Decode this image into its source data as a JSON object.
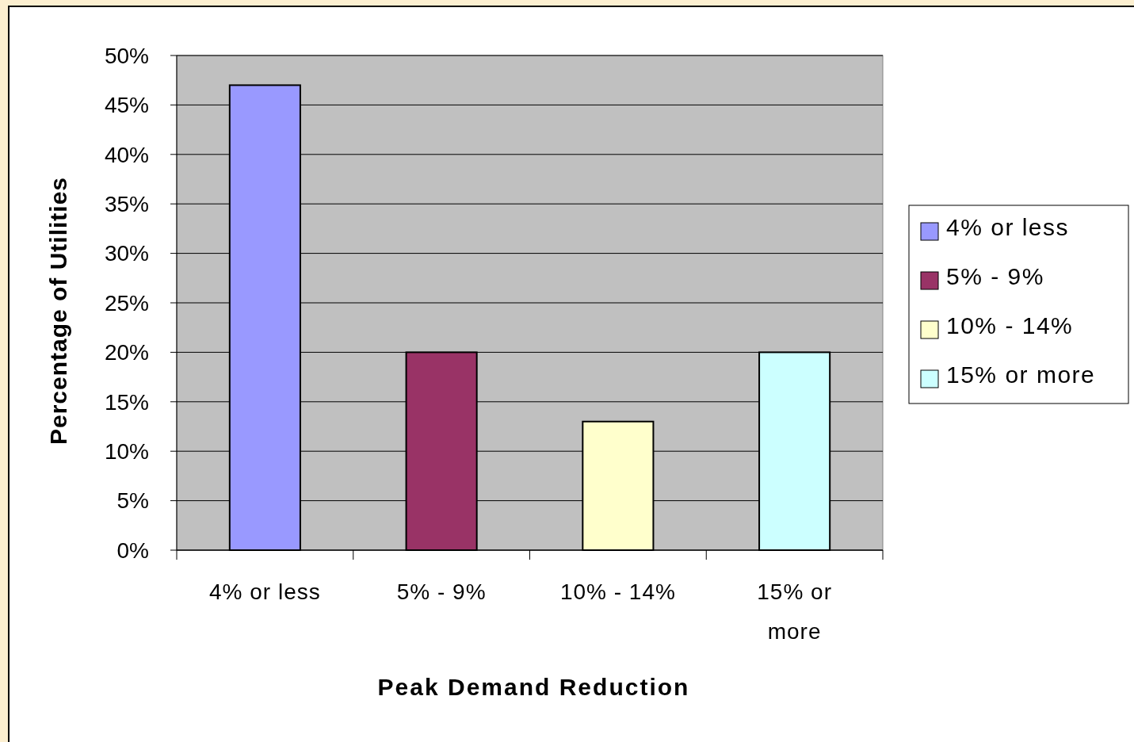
{
  "chart_data": {
    "type": "bar",
    "xlabel": "Peak Demand Reduction",
    "ylabel": "Percentage of Utilities",
    "categories": [
      "4% or less",
      "5% - 9%",
      "10% - 14%",
      "15% or more"
    ],
    "series": [
      {
        "name": "4% or less",
        "color": "#9999ff",
        "values": [
          47,
          null,
          null,
          null
        ]
      },
      {
        "name": "5% - 9%",
        "color": "#993366",
        "values": [
          null,
          20,
          null,
          null
        ]
      },
      {
        "name": "10% - 14%",
        "color": "#ffffcc",
        "values": [
          null,
          null,
          13,
          null
        ]
      },
      {
        "name": "15% or more",
        "color": "#ccffff",
        "values": [
          null,
          null,
          null,
          20
        ]
      }
    ],
    "ylim": [
      0,
      50
    ],
    "yticks": [
      {
        "value": 0,
        "label": "0%"
      },
      {
        "value": 5,
        "label": "5%"
      },
      {
        "value": 10,
        "label": "10%"
      },
      {
        "value": 15,
        "label": "15%"
      },
      {
        "value": 20,
        "label": "20%"
      },
      {
        "value": 25,
        "label": "25%"
      },
      {
        "value": 30,
        "label": "30%"
      },
      {
        "value": 35,
        "label": "35%"
      },
      {
        "value": 40,
        "label": "40%"
      },
      {
        "value": 45,
        "label": "45%"
      },
      {
        "value": 50,
        "label": "50%"
      }
    ],
    "grid": "y",
    "legend": "right"
  }
}
